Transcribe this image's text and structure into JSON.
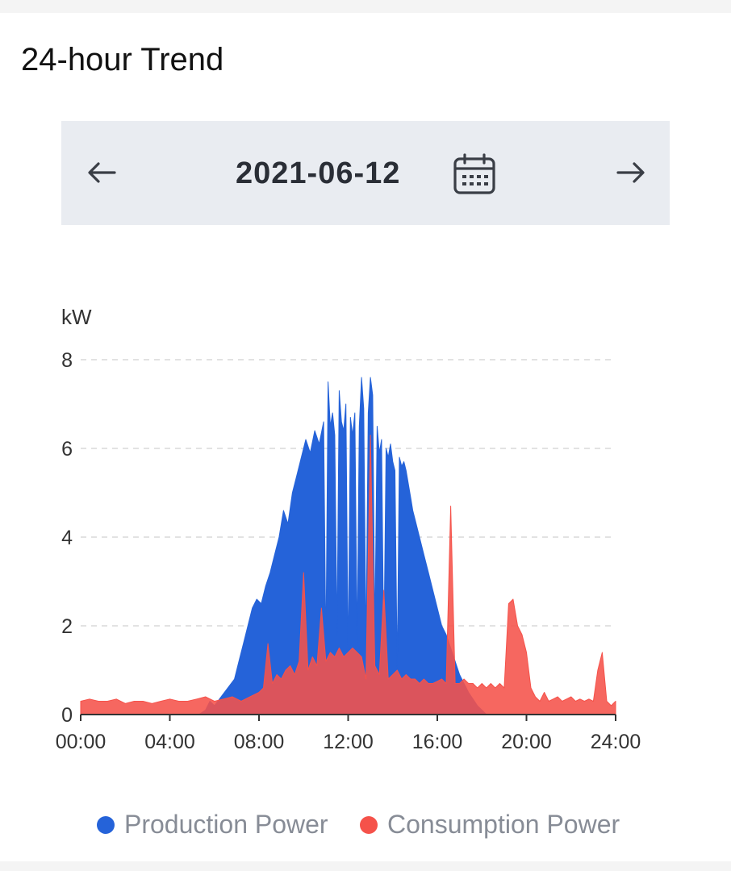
{
  "card": {
    "title": "24-hour Trend"
  },
  "date_nav": {
    "date": "2021-06-12",
    "prev_icon": "arrow-left-icon",
    "next_icon": "arrow-right-icon",
    "calendar_icon": "calendar-icon"
  },
  "colors": {
    "production": "#2563d9",
    "consumption": "#f5524a",
    "grid": "#d8d8d8",
    "axis": "#333333"
  },
  "chart_data": {
    "type": "area",
    "ylabel": "kW",
    "ylim": [
      0,
      8
    ],
    "yticks": [
      "0",
      "2",
      "4",
      "6",
      "8"
    ],
    "xticks": [
      "00:00",
      "04:00",
      "08:00",
      "12:00",
      "16:00",
      "20:00",
      "24:00"
    ],
    "x_unit": "hour of day",
    "grid": true,
    "legend_position": "bottom",
    "series": [
      {
        "name": "Production Power",
        "x": [
          0,
          5.3,
          5.6,
          5.8,
          6.0,
          6.3,
          6.6,
          6.9,
          7.1,
          7.3,
          7.5,
          7.7,
          7.9,
          8.1,
          8.3,
          8.5,
          8.7,
          8.9,
          9.1,
          9.3,
          9.5,
          9.7,
          9.9,
          10.1,
          10.3,
          10.5,
          10.7,
          10.9,
          11.0,
          11.1,
          11.2,
          11.3,
          11.4,
          11.5,
          11.6,
          11.7,
          11.8,
          11.9,
          12.0,
          12.1,
          12.2,
          12.3,
          12.4,
          12.5,
          12.6,
          12.7,
          12.8,
          12.9,
          13.0,
          13.1,
          13.2,
          13.3,
          13.4,
          13.5,
          13.6,
          13.7,
          13.8,
          13.9,
          14.0,
          14.1,
          14.2,
          14.3,
          14.4,
          14.5,
          14.6,
          14.7,
          14.8,
          14.9,
          15.0,
          15.2,
          15.4,
          15.6,
          15.8,
          16.0,
          16.2,
          16.4,
          16.6,
          16.8,
          17.0,
          17.2,
          17.4,
          17.6,
          17.8,
          18.0,
          18.2,
          18.4,
          18.6,
          18.8,
          19.0,
          19.2,
          19.4,
          19.6,
          19.8,
          20.0,
          20.3,
          20.6,
          20.9,
          21.2,
          21.5,
          22.0,
          24.0
        ],
        "values": [
          0,
          0,
          0.1,
          0.3,
          0.2,
          0.4,
          0.6,
          0.8,
          1.2,
          1.6,
          2.0,
          2.4,
          2.6,
          2.5,
          2.9,
          3.2,
          3.6,
          4.0,
          4.6,
          4.3,
          5.0,
          5.4,
          5.8,
          6.2,
          5.9,
          6.4,
          6.1,
          6.6,
          1.4,
          7.5,
          6.5,
          6.8,
          6.3,
          1.8,
          7.3,
          6.6,
          6.4,
          7.0,
          1.2,
          6.7,
          6.3,
          6.8,
          1.6,
          6.5,
          7.6,
          6.9,
          1.5,
          6.8,
          7.6,
          7.2,
          1.8,
          6.5,
          5.9,
          6.2,
          1.3,
          6.0,
          5.8,
          6.1,
          5.7,
          5.5,
          1.0,
          5.8,
          5.6,
          5.7,
          5.5,
          5.2,
          4.9,
          4.6,
          4.4,
          4.0,
          3.6,
          3.2,
          2.8,
          2.4,
          2.0,
          1.8,
          1.5,
          1.2,
          0.9,
          0.7,
          0.5,
          0.35,
          0.2,
          0.1,
          0,
          0,
          0,
          0,
          0,
          0,
          0,
          0,
          0,
          0,
          0,
          0,
          0,
          0,
          0,
          0,
          0
        ]
      },
      {
        "name": "Consumption Power",
        "x": [
          0,
          0.4,
          0.8,
          1.2,
          1.6,
          2.0,
          2.4,
          2.8,
          3.2,
          3.6,
          4.0,
          4.4,
          4.8,
          5.2,
          5.6,
          6.0,
          6.4,
          6.8,
          7.2,
          7.6,
          8.0,
          8.2,
          8.4,
          8.6,
          8.8,
          9.0,
          9.2,
          9.4,
          9.6,
          9.8,
          10.0,
          10.2,
          10.4,
          10.6,
          10.8,
          11.0,
          11.2,
          11.4,
          11.6,
          11.8,
          12.0,
          12.2,
          12.4,
          12.6,
          12.8,
          13.0,
          13.2,
          13.4,
          13.6,
          13.8,
          14.0,
          14.2,
          14.4,
          14.6,
          14.8,
          15.0,
          15.2,
          15.4,
          15.6,
          15.8,
          16.0,
          16.2,
          16.4,
          16.6,
          16.8,
          17.0,
          17.2,
          17.4,
          17.6,
          17.8,
          18.0,
          18.2,
          18.4,
          18.6,
          18.8,
          19.0,
          19.2,
          19.4,
          19.6,
          19.8,
          20.0,
          20.2,
          20.4,
          20.6,
          20.8,
          21.0,
          21.2,
          21.4,
          21.6,
          21.8,
          22.0,
          22.2,
          22.4,
          22.6,
          22.8,
          23.0,
          23.2,
          23.4,
          23.6,
          23.8,
          24.0
        ],
        "values": [
          0.3,
          0.35,
          0.3,
          0.3,
          0.35,
          0.25,
          0.3,
          0.3,
          0.25,
          0.3,
          0.35,
          0.3,
          0.3,
          0.35,
          0.4,
          0.3,
          0.35,
          0.4,
          0.3,
          0.4,
          0.5,
          0.6,
          1.6,
          0.7,
          0.9,
          0.8,
          1.0,
          1.1,
          0.9,
          1.2,
          3.2,
          1.0,
          1.3,
          1.1,
          2.4,
          1.2,
          1.4,
          1.3,
          1.5,
          1.3,
          1.4,
          1.5,
          1.4,
          1.3,
          0.8,
          6.3,
          1.1,
          0.9,
          2.8,
          0.8,
          0.9,
          1.0,
          0.8,
          0.9,
          0.8,
          0.8,
          0.7,
          0.8,
          0.7,
          0.7,
          0.75,
          0.8,
          0.7,
          4.7,
          0.7,
          0.7,
          0.8,
          0.7,
          0.7,
          0.6,
          0.7,
          0.6,
          0.7,
          0.6,
          0.7,
          0.6,
          2.5,
          2.6,
          2.0,
          1.8,
          1.4,
          0.6,
          0.4,
          0.3,
          0.5,
          0.3,
          0.35,
          0.4,
          0.3,
          0.35,
          0.4,
          0.3,
          0.35,
          0.3,
          0.35,
          0.3,
          1.0,
          1.4,
          0.3,
          0.2,
          0.3
        ]
      }
    ]
  }
}
